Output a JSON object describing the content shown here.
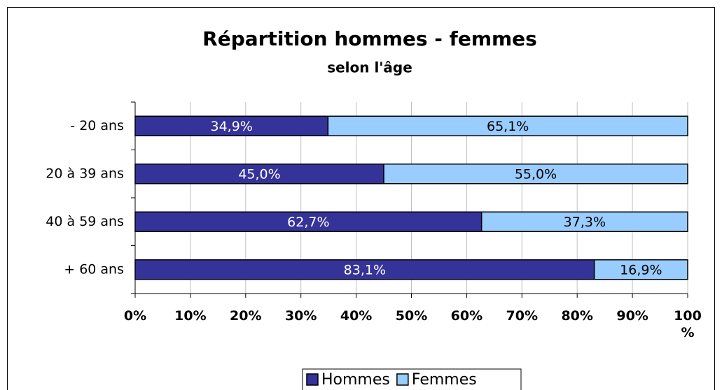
{
  "chart_data": {
    "type": "stacked_barh",
    "title": "Répartition hommes - femmes",
    "subtitle": "selon l'âge",
    "categories": [
      "- 20 ans",
      "20 à 39 ans",
      "40 à 59 ans",
      "+ 60 ans"
    ],
    "series": [
      {
        "name": "Hommes",
        "color": "#333399",
        "values": [
          34.9,
          45.0,
          62.7,
          83.1
        ],
        "value_labels": [
          "34,9%",
          "45,0%",
          "62,7%",
          "83,1%"
        ]
      },
      {
        "name": "Femmes",
        "color": "#99ccff",
        "values": [
          65.1,
          55.0,
          37.3,
          16.9
        ],
        "value_labels": [
          "65,1%",
          "55,0%",
          "37,3%",
          "16,9%"
        ]
      }
    ],
    "xlim": [
      0,
      100
    ],
    "xticks": [
      {
        "value": 0,
        "label": "0%"
      },
      {
        "value": 10,
        "label": "10%"
      },
      {
        "value": 20,
        "label": "20%"
      },
      {
        "value": 30,
        "label": "30%"
      },
      {
        "value": 40,
        "label": "40%"
      },
      {
        "value": 50,
        "label": "50%"
      },
      {
        "value": 60,
        "label": "60%"
      },
      {
        "value": 70,
        "label": "70%"
      },
      {
        "value": 80,
        "label": "80%"
      },
      {
        "value": 90,
        "label": "90%"
      },
      {
        "value": 100,
        "label": "100 %"
      }
    ],
    "grid": true,
    "legend": "bottom"
  }
}
